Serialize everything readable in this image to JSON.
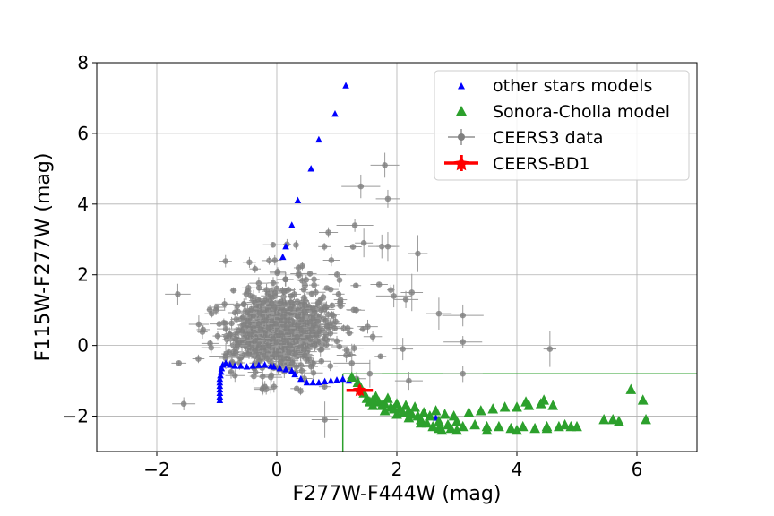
{
  "chart_data": {
    "type": "scatter",
    "title": "",
    "xlabel": "F277W-F444W (mag)",
    "ylabel": "F115W-F277W (mag)",
    "xlim": [
      -3,
      7
    ],
    "ylim": [
      -3,
      8
    ],
    "xticks": [
      -2,
      0,
      2,
      4,
      6
    ],
    "xtick_labels": [
      "−2",
      "0",
      "2",
      "4",
      "6"
    ],
    "yticks": [
      -2,
      0,
      2,
      4,
      6,
      8
    ],
    "ytick_labels": [
      "−2",
      "0",
      "2",
      "4",
      "6",
      "8"
    ],
    "grid": true,
    "legend_position": "upper right",
    "selection_box": {
      "x_min": 1.1,
      "y_max": -0.8,
      "color": "#2ca02c"
    },
    "series": [
      {
        "name": "other stars models",
        "marker": "triangle-small",
        "color": "#0000ff",
        "points": [
          [
            -0.95,
            -1.55
          ],
          [
            -0.95,
            -1.45
          ],
          [
            -0.95,
            -1.35
          ],
          [
            -0.95,
            -1.25
          ],
          [
            -0.95,
            -1.15
          ],
          [
            -0.95,
            -1.05
          ],
          [
            -0.95,
            -0.95
          ],
          [
            -0.94,
            -0.85
          ],
          [
            -0.93,
            -0.75
          ],
          [
            -0.92,
            -0.65
          ],
          [
            -0.9,
            -0.55
          ],
          [
            -0.85,
            -0.5
          ],
          [
            -0.78,
            -0.55
          ],
          [
            -0.7,
            -0.58
          ],
          [
            -0.6,
            -0.58
          ],
          [
            -0.5,
            -0.6
          ],
          [
            -0.4,
            -0.58
          ],
          [
            -0.3,
            -0.56
          ],
          [
            -0.2,
            -0.55
          ],
          [
            -0.1,
            -0.58
          ],
          [
            -0.05,
            -0.6
          ],
          [
            0.05,
            -0.65
          ],
          [
            0.15,
            -0.68
          ],
          [
            0.25,
            -0.72
          ],
          [
            0.3,
            -0.82
          ],
          [
            0.4,
            -0.95
          ],
          [
            0.5,
            -1.05
          ],
          [
            0.6,
            -1.05
          ],
          [
            0.7,
            -1.05
          ],
          [
            0.8,
            -1.02
          ],
          [
            0.9,
            -1.0
          ],
          [
            1.0,
            -0.98
          ],
          [
            1.1,
            -0.95
          ],
          [
            1.2,
            -1.0
          ],
          [
            0.1,
            2.5
          ],
          [
            0.15,
            2.8
          ],
          [
            0.25,
            3.4
          ],
          [
            0.35,
            4.1
          ],
          [
            0.57,
            5.0
          ],
          [
            0.7,
            5.82
          ],
          [
            0.97,
            6.55
          ],
          [
            1.15,
            7.35
          ],
          [
            2.45,
            -1.9
          ],
          [
            2.55,
            -2.0
          ],
          [
            2.65,
            -2.05
          ]
        ]
      },
      {
        "name": "Sonora-Cholla model",
        "marker": "triangle-large",
        "color": "#2ca02c",
        "points": [
          [
            1.25,
            -0.9
          ],
          [
            1.35,
            -1.05
          ],
          [
            1.4,
            -1.2
          ],
          [
            1.45,
            -1.35
          ],
          [
            1.5,
            -1.5
          ],
          [
            1.55,
            -1.6
          ],
          [
            1.6,
            -1.55
          ],
          [
            1.65,
            -1.45
          ],
          [
            1.7,
            -1.6
          ],
          [
            1.75,
            -1.7
          ],
          [
            1.8,
            -1.65
          ],
          [
            1.85,
            -1.5
          ],
          [
            1.9,
            -1.75
          ],
          [
            1.95,
            -1.8
          ],
          [
            2.0,
            -1.65
          ],
          [
            2.05,
            -1.8
          ],
          [
            2.1,
            -1.9
          ],
          [
            2.15,
            -1.7
          ],
          [
            2.2,
            -1.85
          ],
          [
            2.25,
            -1.95
          ],
          [
            2.3,
            -1.75
          ],
          [
            2.35,
            -2.0
          ],
          [
            2.4,
            -2.1
          ],
          [
            2.45,
            -1.9
          ],
          [
            2.5,
            -2.2
          ],
          [
            2.55,
            -2.0
          ],
          [
            2.6,
            -2.3
          ],
          [
            2.65,
            -1.85
          ],
          [
            2.7,
            -2.15
          ],
          [
            2.75,
            -2.4
          ],
          [
            2.8,
            -1.95
          ],
          [
            2.85,
            -2.25
          ],
          [
            2.9,
            -2.35
          ],
          [
            2.95,
            -2.0
          ],
          [
            3.0,
            -2.15
          ],
          [
            3.1,
            -2.3
          ],
          [
            3.2,
            -1.9
          ],
          [
            3.3,
            -2.25
          ],
          [
            3.4,
            -1.85
          ],
          [
            3.5,
            -2.3
          ],
          [
            3.6,
            -1.8
          ],
          [
            3.7,
            -2.3
          ],
          [
            3.8,
            -1.75
          ],
          [
            3.9,
            -2.35
          ],
          [
            4.0,
            -1.75
          ],
          [
            4.1,
            -2.3
          ],
          [
            4.2,
            -1.7
          ],
          [
            4.3,
            -2.35
          ],
          [
            4.4,
            -1.65
          ],
          [
            4.5,
            -2.3
          ],
          [
            4.6,
            -1.7
          ],
          [
            4.7,
            -2.3
          ],
          [
            4.8,
            -2.25
          ],
          [
            4.9,
            -2.3
          ],
          [
            5.0,
            -2.3
          ],
          [
            1.6,
            -1.7
          ],
          [
            1.8,
            -1.85
          ],
          [
            2.0,
            -1.95
          ],
          [
            2.2,
            -2.05
          ],
          [
            2.4,
            -2.2
          ],
          [
            2.7,
            -2.35
          ],
          [
            3.0,
            -2.4
          ],
          [
            3.5,
            -2.4
          ],
          [
            4.0,
            -2.4
          ],
          [
            4.5,
            -2.35
          ],
          [
            4.15,
            -1.6
          ],
          [
            4.45,
            -1.55
          ],
          [
            5.45,
            -2.1
          ],
          [
            5.6,
            -2.1
          ],
          [
            5.7,
            -2.15
          ],
          [
            5.9,
            -1.25
          ],
          [
            6.1,
            -1.55
          ],
          [
            6.15,
            -2.1
          ]
        ]
      },
      {
        "name": "CEERS3 data",
        "marker": "circle-errorbar",
        "color": "#808080",
        "n_points": 900,
        "outliers": [
          [
            -1.55,
            -1.65
          ],
          [
            -1.65,
            1.45
          ],
          [
            -1.3,
            0.6
          ],
          [
            -0.85,
            -0.3
          ],
          [
            0.8,
            -2.1
          ],
          [
            -0.1,
            -0.9
          ],
          [
            1.3,
            3.4
          ],
          [
            1.45,
            2.9
          ],
          [
            1.75,
            2.8
          ],
          [
            1.85,
            2.8
          ],
          [
            1.8,
            5.1
          ],
          [
            1.85,
            4.15
          ],
          [
            1.4,
            4.5
          ],
          [
            1.55,
            -0.8
          ],
          [
            1.25,
            -0.5
          ],
          [
            1.95,
            1.4
          ],
          [
            2.15,
            1.3
          ],
          [
            2.25,
            1.5
          ],
          [
            2.35,
            2.6
          ],
          [
            2.1,
            -0.1
          ],
          [
            2.7,
            0.9
          ],
          [
            3.1,
            0.85
          ],
          [
            3.1,
            0.1
          ],
          [
            3.1,
            -0.8
          ],
          [
            4.55,
            -0.1
          ],
          [
            2.2,
            -1.0
          ]
        ]
      },
      {
        "name": "CEERS-BD1",
        "marker": "star-errorbar",
        "color": "#ff0000",
        "points": [
          [
            1.38,
            -1.27
          ]
        ],
        "x_err": 0.22,
        "y_err": 0.15
      }
    ]
  }
}
